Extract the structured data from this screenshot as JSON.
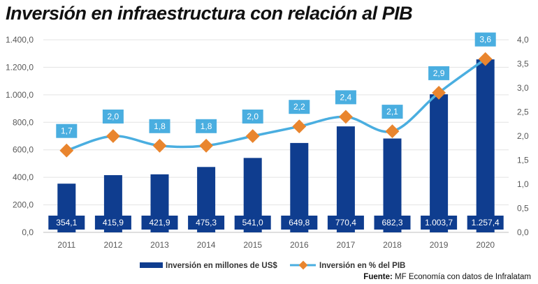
{
  "title": "Inversión en infraestructura con relación al PIB",
  "source_label": "Fuente:",
  "source_text": "MF Economía con datos de Infralatam",
  "chart_data": {
    "type": "bar",
    "categories": [
      "2011",
      "2012",
      "2013",
      "2014",
      "2015",
      "2016",
      "2017",
      "2018",
      "2019",
      "2020"
    ],
    "series": [
      {
        "name": "Inversión en millones de US$",
        "type": "bar",
        "axis": "left",
        "color": "#0f3d8f",
        "values": [
          354.1,
          415.9,
          421.9,
          475.3,
          541.0,
          649.8,
          770.4,
          682.3,
          1003.7,
          1257.4
        ],
        "labels": [
          "354,1",
          "415,9",
          "421,9",
          "475,3",
          "541,0",
          "649,8",
          "770,4",
          "682,3",
          "1.003,7",
          "1.257,4"
        ]
      },
      {
        "name": "Inversión en % del PIB",
        "type": "line",
        "axis": "right",
        "color": "#4aaee0",
        "marker_color": "#e9852e",
        "values": [
          1.7,
          2.0,
          1.8,
          1.8,
          2.0,
          2.2,
          2.4,
          2.1,
          2.9,
          3.6
        ],
        "labels": [
          "1,7",
          "2,0",
          "1,8",
          "1,8",
          "2,0",
          "2,2",
          "2,4",
          "2,1",
          "2,9",
          "3,6"
        ]
      }
    ],
    "y_left": {
      "min": 0,
      "max": 1400,
      "ticks": [
        "0,0",
        "200,0",
        "400,0",
        "600,0",
        "800,0",
        "1.000,0",
        "1.200,0",
        "1.400,0"
      ]
    },
    "y_right": {
      "min": 0,
      "max": 4,
      "ticks": [
        "0,0",
        "0,5",
        "1,0",
        "1,5",
        "2,0",
        "2,5",
        "3,0",
        "3,5",
        "4,0"
      ]
    },
    "grid": "horizontal",
    "legend_position": "bottom"
  }
}
